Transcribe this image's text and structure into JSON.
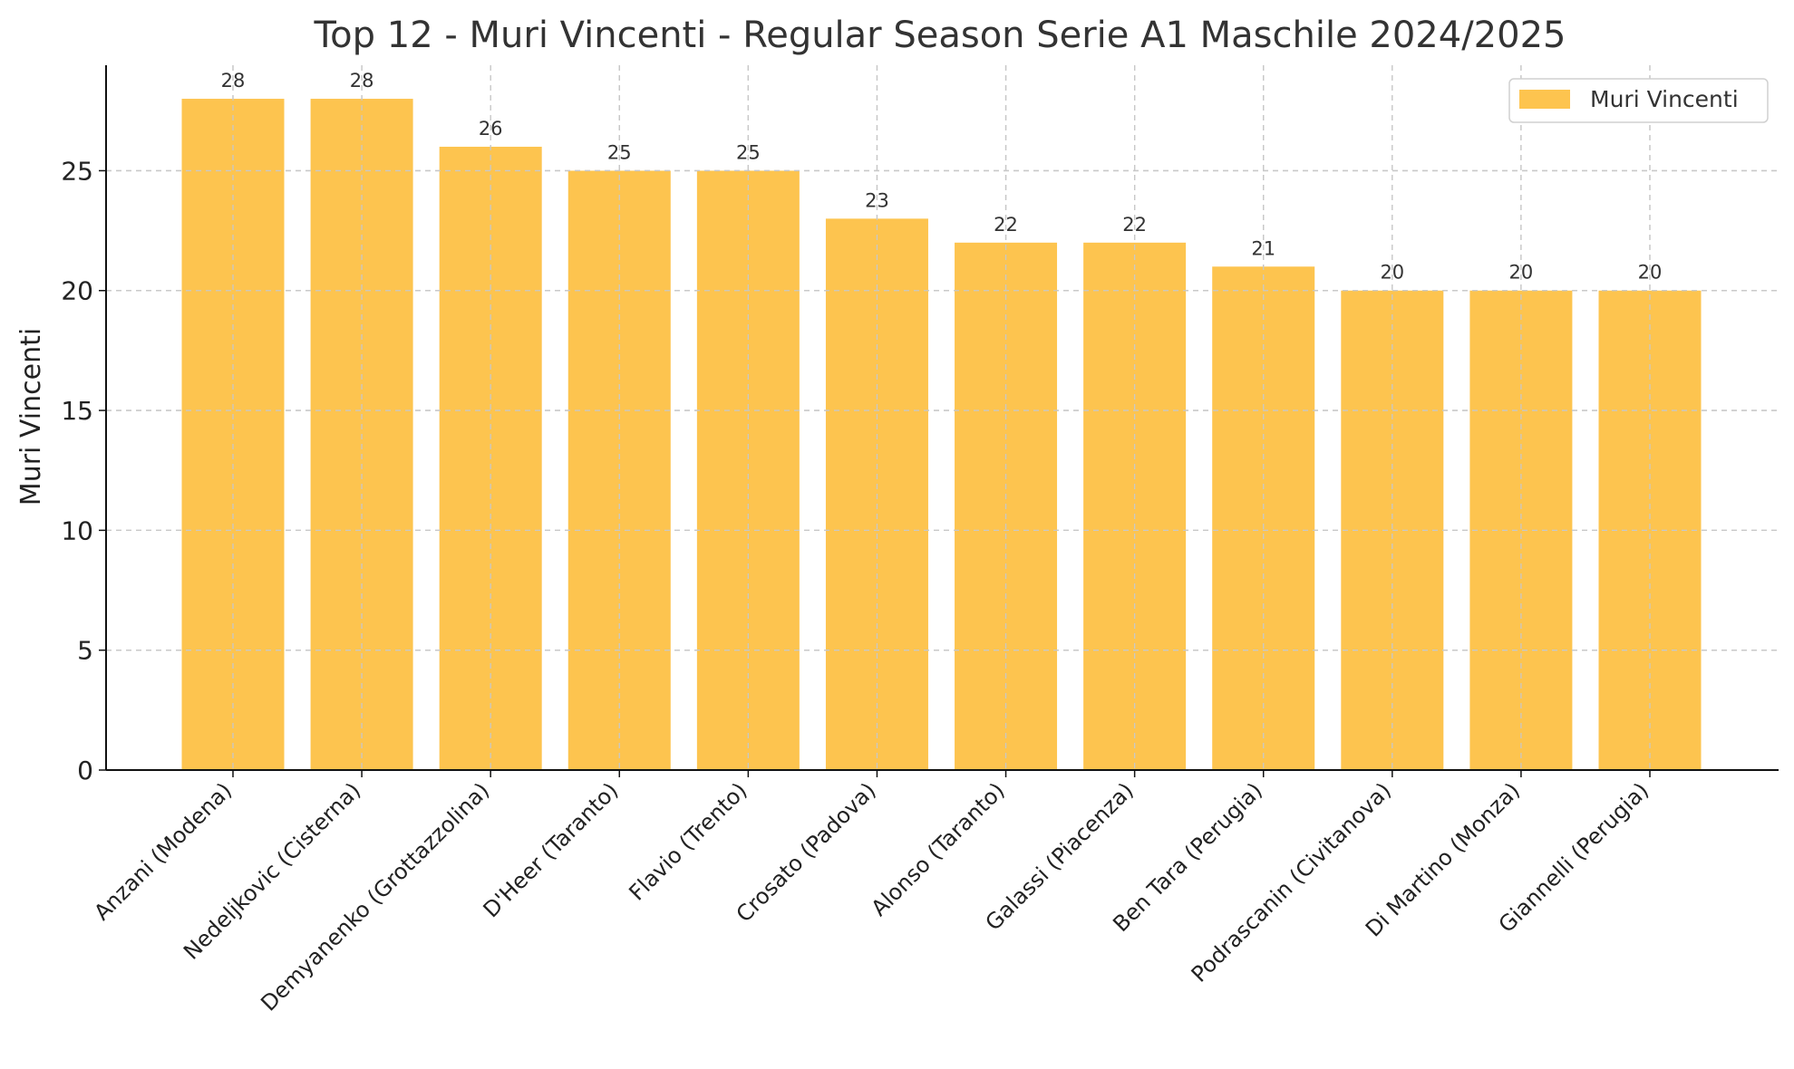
{
  "chart_data": {
    "type": "bar",
    "title": "Top 12 - Muri Vincenti - Regular Season Serie A1 Maschile 2024/2025",
    "xlabel": "",
    "ylabel": "Muri Vincenti",
    "categories": [
      "Anzani (Modena)",
      "Nedeljkovic (Cisterna)",
      "Demyanenko (Grottazzolina)",
      "D'Heer (Taranto)",
      "Flavio (Trento)",
      "Crosato (Padova)",
      "Alonso (Taranto)",
      "Galassi (Piacenza)",
      "Ben Tara (Perugia)",
      "Podrascanin (Civitanova)",
      "Di Martino (Monza)",
      "Giannelli (Perugia)"
    ],
    "series": [
      {
        "name": "Muri Vincenti",
        "values": [
          28,
          28,
          26,
          25,
          25,
          23,
          22,
          22,
          21,
          20,
          20,
          20
        ]
      }
    ],
    "ylim": [
      0,
      29.4
    ],
    "yticks": [
      0,
      5,
      10,
      15,
      20,
      25
    ],
    "grid": true,
    "legend_position": "top-right",
    "colors": {
      "bar": "#fdc44f"
    }
  }
}
